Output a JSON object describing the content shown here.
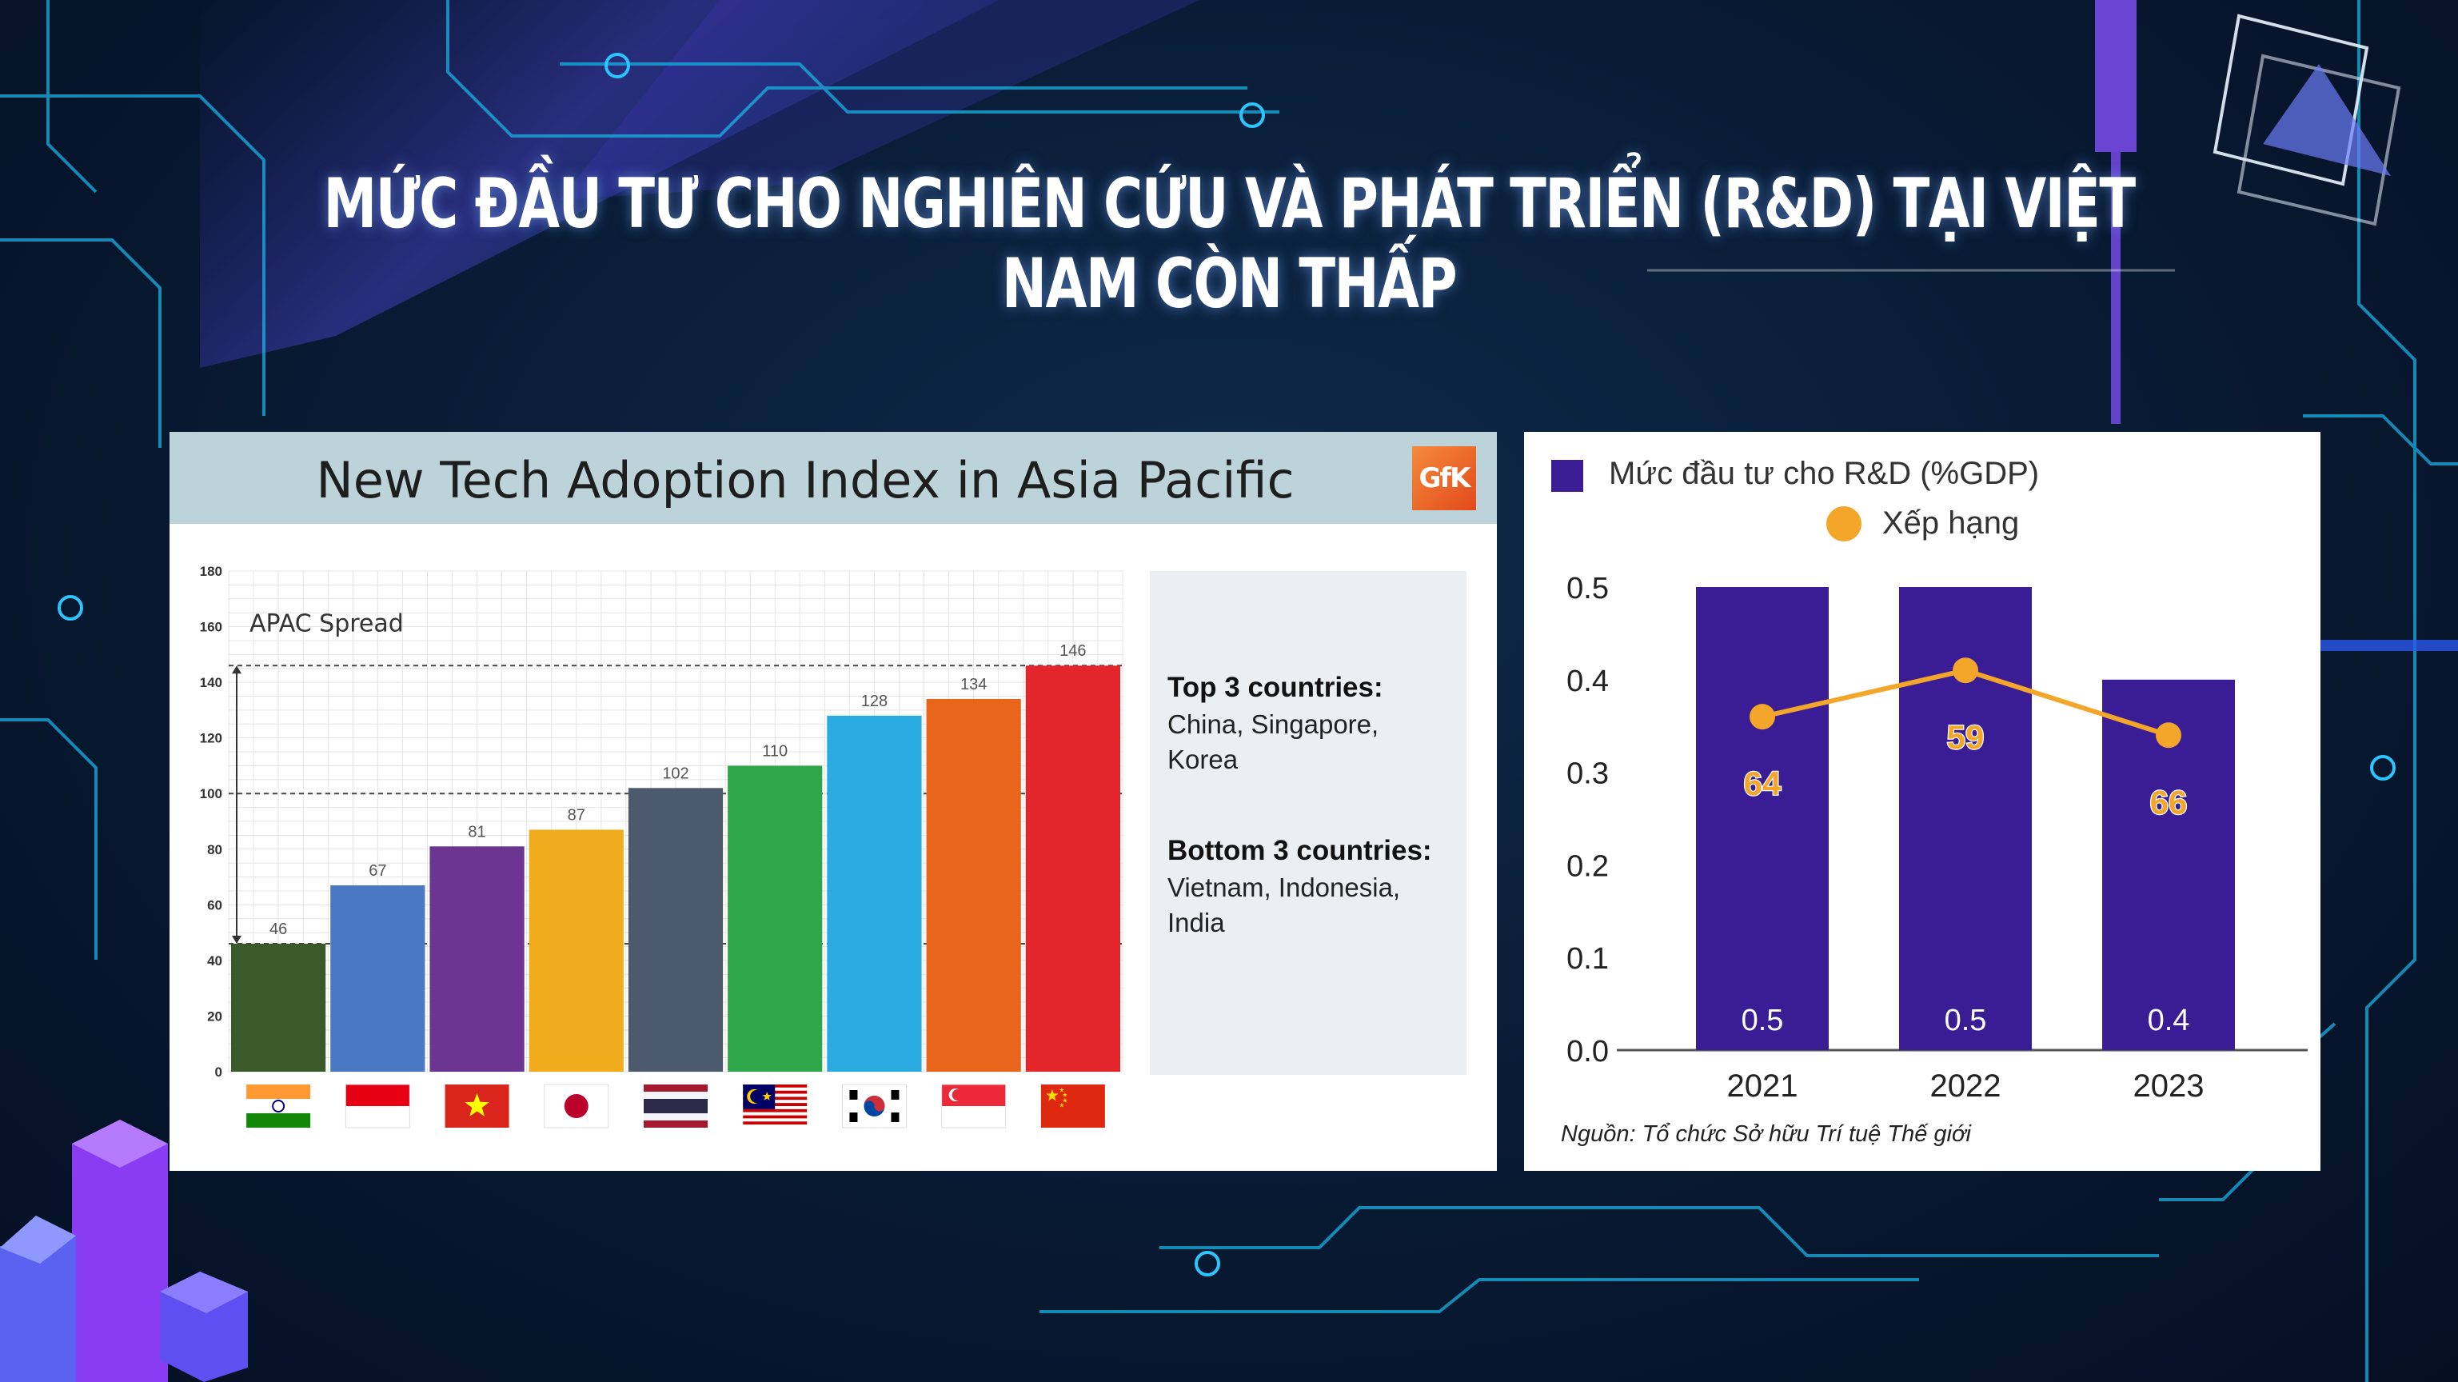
{
  "headline": "MỨC ĐẦU TƯ CHO NGHIÊN CỨU VÀ PHÁT TRIỂN (R&D) TẠI VIỆT NAM CÒN THẤP",
  "left_panel": {
    "title": "New Tech Adoption Index in Asia Pacific",
    "logo_text": "GfK",
    "spread_label": "APAC Spread",
    "info": {
      "top_heading": "Top 3 countries:",
      "top_list": "China, Singapore, Korea",
      "bottom_heading": "Bottom 3 countries:",
      "bottom_list": "Vietnam, Indonesia, India"
    }
  },
  "right_panel": {
    "legend_bar": "Mức đầu tư cho R&D (%GDP)",
    "legend_line": "Xếp hạng",
    "source": "Nguồn: Tổ chức Sở hữu Trí tuệ Thế giới"
  },
  "colors": {
    "rd_bar": "#3a1d94",
    "rank_line": "#f3a62a",
    "left_header_bg": "#bdd3da"
  },
  "chart_data": [
    {
      "type": "bar",
      "title": "New Tech Adoption Index in Asia Pacific",
      "annotation": "APAC Spread",
      "categories": [
        "India",
        "Indonesia",
        "Vietnam",
        "Japan",
        "Thailand",
        "Malaysia",
        "Korea",
        "Singapore",
        "China"
      ],
      "values": [
        46,
        67,
        81,
        87,
        102,
        110,
        128,
        134,
        146
      ],
      "bar_colors": [
        "#3b5a2a",
        "#4a78c2",
        "#6d3592",
        "#f0ac1c",
        "#4c5a6e",
        "#2fa64a",
        "#29abe2",
        "#e8661c",
        "#e3262b"
      ],
      "ylim": [
        0,
        180
      ],
      "yticks": [
        0,
        20,
        40,
        60,
        80,
        100,
        120,
        140,
        160,
        180
      ],
      "reference_lines": [
        46,
        100,
        146
      ],
      "grid": true,
      "xlabel": "",
      "ylabel": ""
    },
    {
      "type": "bar",
      "categories": [
        "2021",
        "2022",
        "2023"
      ],
      "series": [
        {
          "name": "Mức đầu tư cho R&D (%GDP)",
          "type": "bar",
          "values": [
            0.5,
            0.5,
            0.4
          ],
          "labels": [
            "0.5",
            "0.5",
            "0.4"
          ]
        },
        {
          "name": "Xếp hạng",
          "type": "line",
          "values": [
            64,
            59,
            66
          ],
          "plotted_on_left_axis": [
            0.36,
            0.41,
            0.34
          ]
        }
      ],
      "ylim": [
        0,
        0.5
      ],
      "yticks": [
        "0.0",
        "0.1",
        "0.2",
        "0.3",
        "0.4",
        "0.5"
      ],
      "legend": "top-left",
      "grid": false,
      "xlabel": "",
      "ylabel": ""
    }
  ]
}
